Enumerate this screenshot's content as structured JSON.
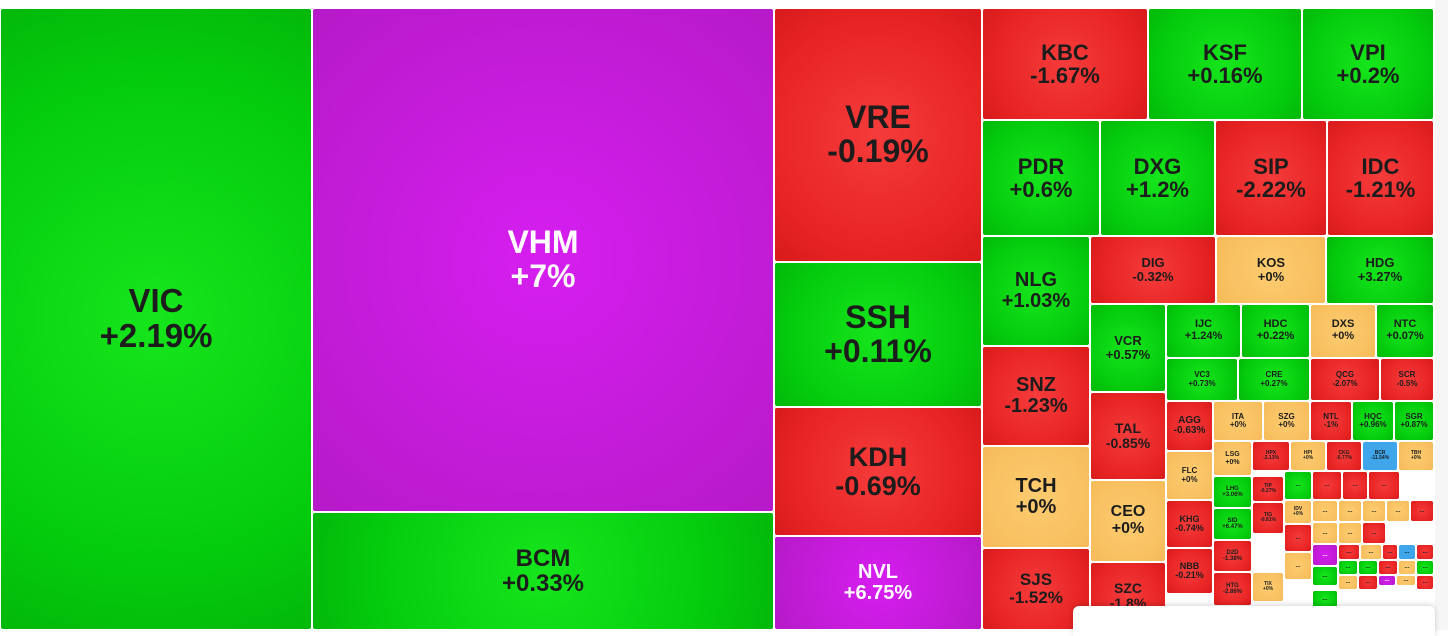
{
  "colors": {
    "up": "#04cc0d",
    "down": "#e82424",
    "flat": "#f6bb5a",
    "ceiling": "#c31ed8",
    "floor": "#3fa6ec"
  },
  "chart_data": {
    "type": "heatmap",
    "subtype": "treemap",
    "value_unit": "%",
    "items": [
      {
        "ticker": "VIC",
        "label": "+2.19%",
        "change": 2.19
      },
      {
        "ticker": "VHM",
        "label": "+7%",
        "change": 7
      },
      {
        "ticker": "BCM",
        "label": "+0.33%",
        "change": 0.33
      },
      {
        "ticker": "VRE",
        "label": "-0.19%",
        "change": -0.19
      },
      {
        "ticker": "SSH",
        "label": "+0.11%",
        "change": 0.11
      },
      {
        "ticker": "KDH",
        "label": "-0.69%",
        "change": -0.69
      },
      {
        "ticker": "NVL",
        "label": "+6.75%",
        "change": 6.75
      },
      {
        "ticker": "KBC",
        "label": "-1.67%",
        "change": -1.67
      },
      {
        "ticker": "KSF",
        "label": "+0.16%",
        "change": 0.16
      },
      {
        "ticker": "VPI",
        "label": "+0.2%",
        "change": 0.2
      },
      {
        "ticker": "PDR",
        "label": "+0.6%",
        "change": 0.6
      },
      {
        "ticker": "DXG",
        "label": "+1.2%",
        "change": 1.2
      },
      {
        "ticker": "SIP",
        "label": "-2.22%",
        "change": -2.22
      },
      {
        "ticker": "IDC",
        "label": "-1.21%",
        "change": -1.21
      },
      {
        "ticker": "NLG",
        "label": "+1.03%",
        "change": 1.03
      },
      {
        "ticker": "DIG",
        "label": "-0.32%",
        "change": -0.32
      },
      {
        "ticker": "KOS",
        "label": "+0%",
        "change": 0
      },
      {
        "ticker": "HDG",
        "label": "+3.27%",
        "change": 3.27
      },
      {
        "ticker": "VCR",
        "label": "+0.57%",
        "change": 0.57
      },
      {
        "ticker": "IJC",
        "label": "+1.24%",
        "change": 1.24
      },
      {
        "ticker": "HDC",
        "label": "+0.22%",
        "change": 0.22
      },
      {
        "ticker": "DXS",
        "label": "+0%",
        "change": 0
      },
      {
        "ticker": "NTC",
        "label": "+0.07%",
        "change": 0.07
      },
      {
        "ticker": "VC3",
        "label": "+0.73%",
        "change": 0.73
      },
      {
        "ticker": "CRE",
        "label": "+0.27%",
        "change": 0.27
      },
      {
        "ticker": "QCG",
        "label": "-2.07%",
        "change": -2.07
      },
      {
        "ticker": "SCR",
        "label": "-0.5%",
        "change": -0.5
      },
      {
        "ticker": "SNZ",
        "label": "-1.23%",
        "change": -1.23
      },
      {
        "ticker": "TAL",
        "label": "-0.85%",
        "change": -0.85
      },
      {
        "ticker": "AGG",
        "label": "-0.63%",
        "change": -0.63
      },
      {
        "ticker": "ITA",
        "label": "+0%",
        "change": 0
      },
      {
        "ticker": "SZG",
        "label": "+0%",
        "change": 0
      },
      {
        "ticker": "NTL",
        "label": "-1%",
        "change": -1
      },
      {
        "ticker": "HQC",
        "label": "+0.96%",
        "change": 0.96
      },
      {
        "ticker": "SGR",
        "label": "+0.87%",
        "change": 0.87
      },
      {
        "ticker": "TCH",
        "label": "+0%",
        "change": 0
      },
      {
        "ticker": "CEO",
        "label": "+0%",
        "change": 0
      },
      {
        "ticker": "FLC",
        "label": "+0%",
        "change": 0
      },
      {
        "ticker": "LSG",
        "label": "+0%",
        "change": 0
      },
      {
        "ticker": "HPX",
        "label": "-2.13%",
        "change": -2.13
      },
      {
        "ticker": "HPI",
        "label": "+0%",
        "change": 0
      },
      {
        "ticker": "CKG",
        "label": "-0.77%",
        "change": -0.77
      },
      {
        "ticker": "BCR",
        "label": "-11.54%",
        "change": -11.54
      },
      {
        "ticker": "TBH",
        "label": "+0%",
        "change": 0
      },
      {
        "ticker": "LHG",
        "label": "+3.06%",
        "change": 3.06
      },
      {
        "ticker": "TIP",
        "label": "-0.27%",
        "change": -0.27
      },
      {
        "ticker": "IDV",
        "label": "+0%",
        "change": 0
      },
      {
        "ticker": "KHG",
        "label": "-0.74%",
        "change": -0.74
      },
      {
        "ticker": "SID",
        "label": "+6.47%",
        "change": 6.47
      },
      {
        "ticker": "TIG",
        "label": "-0.81%",
        "change": -0.81
      },
      {
        "ticker": "NBB",
        "label": "-0.21%",
        "change": -0.21
      },
      {
        "ticker": "D2D",
        "label": "-1.38%",
        "change": -1.38
      },
      {
        "ticker": "TIX",
        "label": "+0%",
        "change": 0
      },
      {
        "ticker": "HTG",
        "label": "-2.86%",
        "change": -2.86
      },
      {
        "ticker": "SJS",
        "label": "-1.52%",
        "change": -1.52
      },
      {
        "ticker": "SZC",
        "label": "-1.8%",
        "change": -1.8
      }
    ],
    "small_items": [
      {
        "label": "...",
        "state": "up"
      },
      {
        "label": "...",
        "state": "down"
      },
      {
        "label": "...",
        "state": "down"
      },
      {
        "label": "...",
        "state": "down"
      },
      {
        "label": "...",
        "state": "flat"
      },
      {
        "label": "...",
        "state": "flat"
      },
      {
        "label": "...",
        "state": "flat"
      },
      {
        "label": "...",
        "state": "flat"
      },
      {
        "label": "...",
        "state": "down"
      },
      {
        "label": "...",
        "state": "down"
      },
      {
        "label": "...",
        "state": "flat"
      },
      {
        "label": "...",
        "state": "flat"
      },
      {
        "label": "...",
        "state": "down"
      },
      {
        "label": "...",
        "state": "ceil"
      },
      {
        "label": "...",
        "state": "down"
      },
      {
        "label": "...",
        "state": "flat"
      },
      {
        "label": "...",
        "state": "down"
      },
      {
        "label": "...",
        "state": "floor"
      },
      {
        "label": "...",
        "state": "down"
      },
      {
        "label": "...",
        "state": "flat"
      },
      {
        "label": "...",
        "state": "up"
      },
      {
        "label": "...",
        "state": "up"
      },
      {
        "label": "...",
        "state": "up"
      },
      {
        "label": "...",
        "state": "down"
      },
      {
        "label": "...",
        "state": "flat"
      },
      {
        "label": "...",
        "state": "up"
      },
      {
        "label": "...",
        "state": "ceil"
      },
      {
        "label": "...",
        "state": "flat"
      },
      {
        "label": "...",
        "state": "flat"
      },
      {
        "label": "...",
        "state": "down"
      },
      {
        "label": "...",
        "state": "up"
      },
      {
        "label": "...",
        "state": "down"
      }
    ]
  }
}
